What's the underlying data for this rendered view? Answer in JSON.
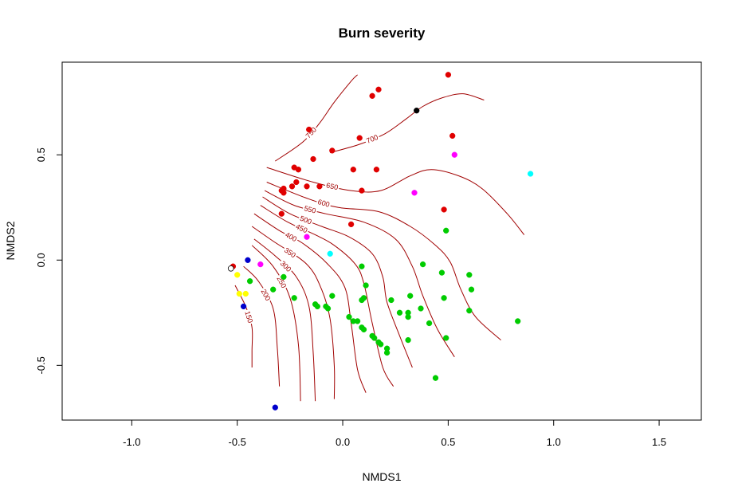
{
  "chart_data": {
    "type": "scatter",
    "title": "Burn severity",
    "xlabel": "NMDS1",
    "ylabel": "NMDS2",
    "xlim": [
      -1.33,
      1.7
    ],
    "ylim": [
      -0.76,
      0.94
    ],
    "xticks": [
      -1.0,
      -0.5,
      0.0,
      0.5,
      1.0,
      1.5
    ],
    "xtick_labels": [
      "-1.0",
      "-0.5",
      "0.0",
      "0.5",
      "1.0",
      "1.5"
    ],
    "yticks": [
      -0.5,
      0.0,
      0.5
    ],
    "ytick_labels": [
      "-0.5",
      "0.0",
      "0.5"
    ],
    "colors": {
      "red": "#e00000",
      "green": "#00cc00",
      "blue": "#0000cc",
      "magenta": "#ff00ff",
      "cyan": "#00ffff",
      "yellow": "#ffff00",
      "black": "#000000",
      "contour": "#a00000"
    },
    "points": [
      {
        "x": 0.5,
        "y": 0.88,
        "c": "red"
      },
      {
        "x": 0.17,
        "y": 0.81,
        "c": "red"
      },
      {
        "x": 0.14,
        "y": 0.78,
        "c": "red"
      },
      {
        "x": 0.35,
        "y": 0.71,
        "c": "black"
      },
      {
        "x": -0.16,
        "y": 0.62,
        "c": "red"
      },
      {
        "x": 0.52,
        "y": 0.59,
        "c": "red"
      },
      {
        "x": 0.08,
        "y": 0.58,
        "c": "red"
      },
      {
        "x": -0.05,
        "y": 0.52,
        "c": "red"
      },
      {
        "x": 0.53,
        "y": 0.5,
        "c": "magenta"
      },
      {
        "x": -0.14,
        "y": 0.48,
        "c": "red"
      },
      {
        "x": -0.23,
        "y": 0.44,
        "c": "red"
      },
      {
        "x": -0.21,
        "y": 0.43,
        "c": "red"
      },
      {
        "x": 0.05,
        "y": 0.43,
        "c": "red"
      },
      {
        "x": 0.16,
        "y": 0.43,
        "c": "red"
      },
      {
        "x": 0.89,
        "y": 0.41,
        "c": "cyan"
      },
      {
        "x": -0.22,
        "y": 0.37,
        "c": "red"
      },
      {
        "x": -0.24,
        "y": 0.35,
        "c": "red"
      },
      {
        "x": -0.17,
        "y": 0.35,
        "c": "red"
      },
      {
        "x": -0.11,
        "y": 0.35,
        "c": "red"
      },
      {
        "x": -0.28,
        "y": 0.34,
        "c": "red"
      },
      {
        "x": -0.29,
        "y": 0.33,
        "c": "red"
      },
      {
        "x": -0.28,
        "y": 0.32,
        "c": "red"
      },
      {
        "x": 0.09,
        "y": 0.33,
        "c": "red"
      },
      {
        "x": 0.34,
        "y": 0.32,
        "c": "magenta"
      },
      {
        "x": 0.48,
        "y": 0.24,
        "c": "red"
      },
      {
        "x": -0.29,
        "y": 0.22,
        "c": "red"
      },
      {
        "x": 0.04,
        "y": 0.17,
        "c": "red"
      },
      {
        "x": 0.49,
        "y": 0.14,
        "c": "green"
      },
      {
        "x": -0.17,
        "y": 0.11,
        "c": "magenta"
      },
      {
        "x": -0.06,
        "y": 0.03,
        "c": "cyan"
      },
      {
        "x": -0.45,
        "y": 0.0,
        "c": "blue"
      },
      {
        "x": -0.39,
        "y": -0.02,
        "c": "magenta"
      },
      {
        "x": 0.38,
        "y": -0.02,
        "c": "green"
      },
      {
        "x": 0.09,
        "y": -0.03,
        "c": "green"
      },
      {
        "x": -0.52,
        "y": -0.03,
        "c": "red"
      },
      {
        "x": -0.53,
        "y": -0.04,
        "c": "white"
      },
      {
        "x": -0.5,
        "y": -0.07,
        "c": "yellow"
      },
      {
        "x": 0.47,
        "y": -0.06,
        "c": "green"
      },
      {
        "x": 0.6,
        "y": -0.07,
        "c": "green"
      },
      {
        "x": -0.28,
        "y": -0.08,
        "c": "green"
      },
      {
        "x": -0.44,
        "y": -0.1,
        "c": "green"
      },
      {
        "x": 0.11,
        "y": -0.12,
        "c": "green"
      },
      {
        "x": 0.61,
        "y": -0.14,
        "c": "green"
      },
      {
        "x": -0.33,
        "y": -0.14,
        "c": "green"
      },
      {
        "x": -0.49,
        "y": -0.16,
        "c": "yellow"
      },
      {
        "x": -0.46,
        "y": -0.16,
        "c": "yellow"
      },
      {
        "x": -0.05,
        "y": -0.17,
        "c": "green"
      },
      {
        "x": 0.1,
        "y": -0.18,
        "c": "green"
      },
      {
        "x": 0.09,
        "y": -0.19,
        "c": "green"
      },
      {
        "x": -0.23,
        "y": -0.18,
        "c": "green"
      },
      {
        "x": 0.32,
        "y": -0.17,
        "c": "green"
      },
      {
        "x": 0.48,
        "y": -0.18,
        "c": "green"
      },
      {
        "x": 0.23,
        "y": -0.19,
        "c": "green"
      },
      {
        "x": -0.13,
        "y": -0.21,
        "c": "green"
      },
      {
        "x": -0.12,
        "y": -0.22,
        "c": "green"
      },
      {
        "x": -0.08,
        "y": -0.22,
        "c": "green"
      },
      {
        "x": -0.07,
        "y": -0.23,
        "c": "green"
      },
      {
        "x": 0.37,
        "y": -0.23,
        "c": "green"
      },
      {
        "x": -0.47,
        "y": -0.22,
        "c": "blue"
      },
      {
        "x": 0.6,
        "y": -0.24,
        "c": "green"
      },
      {
        "x": 0.27,
        "y": -0.25,
        "c": "green"
      },
      {
        "x": 0.31,
        "y": -0.25,
        "c": "green"
      },
      {
        "x": 0.31,
        "y": -0.27,
        "c": "green"
      },
      {
        "x": 0.03,
        "y": -0.27,
        "c": "green"
      },
      {
        "x": 0.05,
        "y": -0.29,
        "c": "green"
      },
      {
        "x": 0.07,
        "y": -0.29,
        "c": "green"
      },
      {
        "x": 0.83,
        "y": -0.29,
        "c": "green"
      },
      {
        "x": 0.41,
        "y": -0.3,
        "c": "green"
      },
      {
        "x": 0.09,
        "y": -0.32,
        "c": "green"
      },
      {
        "x": 0.1,
        "y": -0.33,
        "c": "green"
      },
      {
        "x": 0.14,
        "y": -0.36,
        "c": "green"
      },
      {
        "x": 0.15,
        "y": -0.37,
        "c": "green"
      },
      {
        "x": 0.31,
        "y": -0.38,
        "c": "green"
      },
      {
        "x": 0.49,
        "y": -0.37,
        "c": "green"
      },
      {
        "x": 0.17,
        "y": -0.39,
        "c": "green"
      },
      {
        "x": 0.18,
        "y": -0.4,
        "c": "green"
      },
      {
        "x": 0.21,
        "y": -0.42,
        "c": "green"
      },
      {
        "x": 0.21,
        "y": -0.44,
        "c": "green"
      },
      {
        "x": 0.44,
        "y": -0.56,
        "c": "green"
      },
      {
        "x": -0.32,
        "y": -0.7,
        "c": "blue"
      }
    ],
    "contours": [
      {
        "label": "150",
        "pts": [
          [
            -0.51,
            -0.12
          ],
          [
            -0.46,
            -0.22
          ],
          [
            -0.43,
            -0.32
          ],
          [
            -0.43,
            -0.43
          ],
          [
            -0.43,
            -0.51
          ]
        ]
      },
      {
        "label": "200",
        "pts": [
          [
            -0.47,
            -0.03
          ],
          [
            -0.4,
            -0.1
          ],
          [
            -0.33,
            -0.23
          ],
          [
            -0.31,
            -0.42
          ],
          [
            -0.3,
            -0.6
          ]
        ]
      },
      {
        "label": "250",
        "pts": [
          [
            -0.43,
            0.07
          ],
          [
            -0.33,
            -0.03
          ],
          [
            -0.25,
            -0.18
          ],
          [
            -0.21,
            -0.4
          ],
          [
            -0.2,
            -0.67
          ]
        ]
      },
      {
        "label": "300",
        "pts": [
          [
            -0.42,
            0.1
          ],
          [
            -0.32,
            0.02
          ],
          [
            -0.22,
            -0.08
          ],
          [
            -0.16,
            -0.22
          ],
          [
            -0.14,
            -0.44
          ],
          [
            -0.13,
            -0.67
          ]
        ]
      },
      {
        "label": "350",
        "pts": [
          [
            -0.43,
            0.16
          ],
          [
            -0.33,
            0.09
          ],
          [
            -0.17,
            -0.02
          ],
          [
            -0.1,
            -0.14
          ],
          [
            -0.06,
            -0.28
          ],
          [
            -0.04,
            -0.5
          ],
          [
            -0.04,
            -0.66
          ]
        ]
      },
      {
        "label": "400",
        "pts": [
          [
            -0.42,
            0.22
          ],
          [
            -0.3,
            0.14
          ],
          [
            -0.19,
            0.08
          ],
          [
            -0.07,
            -0.02
          ],
          [
            0.01,
            -0.13
          ],
          [
            0.04,
            -0.3
          ],
          [
            0.07,
            -0.52
          ],
          [
            0.11,
            -0.63
          ]
        ]
      },
      {
        "label": "450",
        "pts": [
          [
            -0.39,
            0.26
          ],
          [
            -0.26,
            0.18
          ],
          [
            -0.13,
            0.12
          ],
          [
            -0.04,
            0.07
          ],
          [
            0.06,
            -0.02
          ],
          [
            0.1,
            -0.11
          ],
          [
            0.14,
            -0.3
          ],
          [
            0.19,
            -0.51
          ],
          [
            0.24,
            -0.6
          ]
        ]
      },
      {
        "label": "500",
        "pts": [
          [
            -0.38,
            0.3
          ],
          [
            -0.25,
            0.22
          ],
          [
            -0.1,
            0.16
          ],
          [
            0.03,
            0.11
          ],
          [
            0.14,
            0.03
          ],
          [
            0.19,
            -0.08
          ],
          [
            0.21,
            -0.2
          ],
          [
            0.27,
            -0.36
          ],
          [
            0.33,
            -0.51
          ]
        ]
      },
      {
        "label": "550",
        "pts": [
          [
            -0.37,
            0.33
          ],
          [
            -0.23,
            0.26
          ],
          [
            -0.08,
            0.22
          ],
          [
            0.1,
            0.18
          ],
          [
            0.25,
            0.1
          ],
          [
            0.33,
            -0.03
          ],
          [
            0.38,
            -0.17
          ],
          [
            0.45,
            -0.33
          ],
          [
            0.53,
            -0.46
          ]
        ]
      },
      {
        "label": "600",
        "pts": [
          [
            -0.36,
            0.37
          ],
          [
            -0.16,
            0.29
          ],
          [
            -0.02,
            0.25
          ],
          [
            0.17,
            0.23
          ],
          [
            0.32,
            0.16
          ],
          [
            0.44,
            0.07
          ],
          [
            0.51,
            -0.01
          ],
          [
            0.56,
            -0.14
          ],
          [
            0.63,
            -0.27
          ],
          [
            0.75,
            -0.38
          ]
        ]
      },
      {
        "label": "650",
        "pts": [
          [
            -0.36,
            0.44
          ],
          [
            -0.14,
            0.37
          ],
          [
            0.04,
            0.33
          ],
          [
            0.18,
            0.33
          ],
          [
            0.32,
            0.4
          ],
          [
            0.42,
            0.43
          ],
          [
            0.55,
            0.4
          ],
          [
            0.66,
            0.34
          ],
          [
            0.78,
            0.22
          ],
          [
            0.86,
            0.12
          ]
        ]
      },
      {
        "label": "750",
        "pts": [
          [
            -0.32,
            0.47
          ],
          [
            -0.19,
            0.56
          ],
          [
            -0.11,
            0.65
          ],
          [
            -0.04,
            0.75
          ],
          [
            0.04,
            0.85
          ],
          [
            0.07,
            0.88
          ]
        ]
      },
      {
        "label": "700",
        "pts": [
          [
            -0.06,
            0.51
          ],
          [
            0.08,
            0.55
          ],
          [
            0.2,
            0.6
          ],
          [
            0.3,
            0.67
          ],
          [
            0.38,
            0.73
          ],
          [
            0.47,
            0.77
          ],
          [
            0.57,
            0.79
          ],
          [
            0.67,
            0.76
          ]
        ]
      }
    ]
  }
}
